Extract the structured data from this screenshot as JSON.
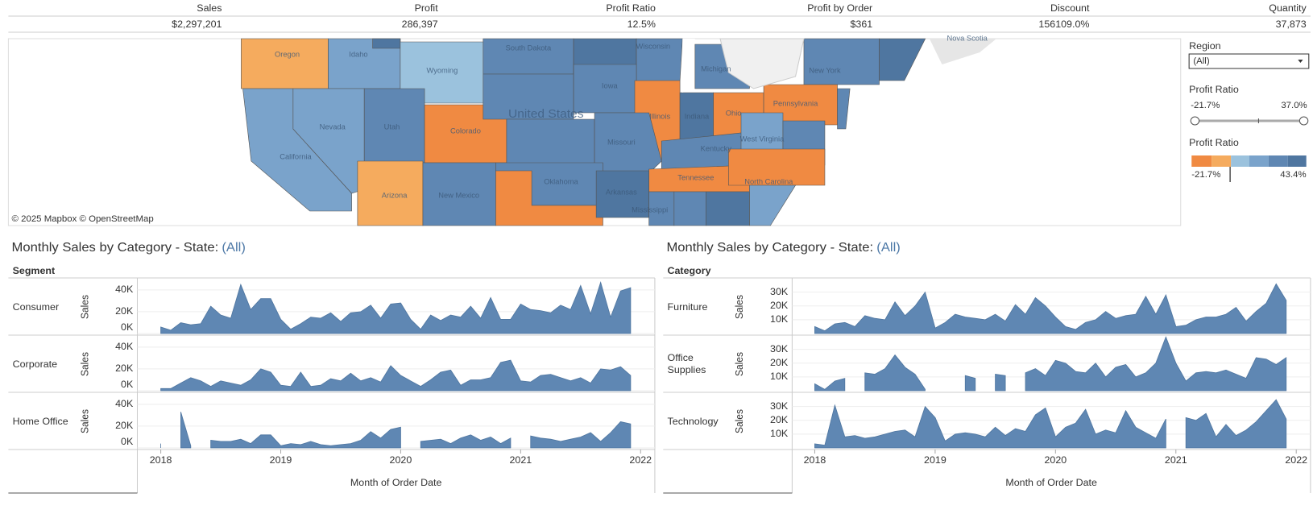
{
  "kpis": [
    {
      "label": "Sales",
      "value": "$2,297,201"
    },
    {
      "label": "Profit",
      "value": "286,397"
    },
    {
      "label": "Profit Ratio",
      "value": "12.5%"
    },
    {
      "label": "Profit by Order",
      "value": "$361"
    },
    {
      "label": "Discount",
      "value": "156109.0%"
    },
    {
      "label": "Quantity",
      "value": "37,873"
    }
  ],
  "map": {
    "attribution": "© 2025 Mapbox © OpenStreetMap",
    "labels": [
      "Oregon",
      "Idaho",
      "Wyoming",
      "South Dakota",
      "Wisconsin",
      "Michigan",
      "New York",
      "Nova Scotia",
      "Iowa",
      "United States",
      "Nevada",
      "Utah",
      "Colorado",
      "Illinois",
      "Indiana",
      "Ohio",
      "Pennsylvania",
      "California",
      "Missouri",
      "Kentucky",
      "West Virginia",
      "Oklahoma",
      "Arkansas",
      "Tennessee",
      "North Carolina",
      "Arizona",
      "New Mexico",
      "Mississippi"
    ]
  },
  "filters": {
    "region_label": "Region",
    "region_value": "(All)",
    "slider_label": "Profit Ratio",
    "slider_min": "-21.7%",
    "slider_max": "37.0%",
    "legend_label": "Profit Ratio",
    "legend_min": "-21.7%",
    "legend_max": "43.4%"
  },
  "chart_data": [
    {
      "type": "area",
      "title": "Monthly Sales by Category - State:",
      "filter": "(All)",
      "row_header": "Segment",
      "y_label": "Sales",
      "x_label": "Month of Order Date",
      "color": "#5f87b3",
      "x": [
        "2018-01",
        "2018-02",
        "2018-03",
        "2018-04",
        "2018-05",
        "2018-06",
        "2018-07",
        "2018-08",
        "2018-09",
        "2018-10",
        "2018-11",
        "2018-12",
        "2019-01",
        "2019-02",
        "2019-03",
        "2019-04",
        "2019-05",
        "2019-06",
        "2019-07",
        "2019-08",
        "2019-09",
        "2019-10",
        "2019-11",
        "2019-12",
        "2020-01",
        "2020-02",
        "2020-03",
        "2020-04",
        "2020-05",
        "2020-06",
        "2020-07",
        "2020-08",
        "2020-09",
        "2020-10",
        "2020-11",
        "2020-12",
        "2021-01",
        "2021-02",
        "2021-03",
        "2021-04",
        "2021-05",
        "2021-06",
        "2021-07",
        "2021-08",
        "2021-09",
        "2021-10",
        "2021-11",
        "2021-12"
      ],
      "xlim": [
        2018,
        2022
      ],
      "xticks": [
        2018,
        2019,
        2020,
        2021,
        2022
      ],
      "ylim": [
        0,
        48000
      ],
      "yticks": [
        {
          "value": 0,
          "label": "0K"
        },
        {
          "value": 20000,
          "label": "20K"
        },
        {
          "value": 40000,
          "label": "40K"
        }
      ],
      "panels": [
        {
          "name": "Consumer",
          "values": [
            6000,
            3000,
            10000,
            8000,
            9000,
            25000,
            17000,
            14000,
            45000,
            22000,
            32000,
            32000,
            13000,
            4000,
            9000,
            15000,
            14000,
            19000,
            11000,
            19000,
            20000,
            26000,
            14000,
            27000,
            28000,
            13000,
            4000,
            17000,
            12000,
            17000,
            15000,
            25000,
            14000,
            33000,
            13000,
            13000,
            27000,
            22000,
            21000,
            19000,
            26000,
            22000,
            44000,
            18000,
            47000,
            15000,
            39000,
            42000
          ]
        },
        {
          "name": "Corporate",
          "values": [
            2000,
            2000,
            7000,
            12000,
            9000,
            4000,
            9000,
            7000,
            5000,
            10000,
            20000,
            17000,
            5000,
            4000,
            17000,
            4000,
            5000,
            11000,
            9000,
            16000,
            9000,
            12000,
            8000,
            23000,
            14000,
            9000,
            4000,
            10000,
            17000,
            19000,
            5000,
            10000,
            10000,
            12000,
            26000,
            28000,
            9000,
            8000,
            14000,
            15000,
            12000,
            9000,
            12000,
            7000,
            20000,
            19000,
            22000,
            14000
          ]
        },
        {
          "name": "Home Office",
          "values": [
            4000,
            null,
            33000,
            2000,
            null,
            7000,
            6000,
            6000,
            8000,
            4000,
            12000,
            12000,
            2000,
            4000,
            3000,
            6000,
            3000,
            2000,
            3000,
            4000,
            7000,
            15000,
            9000,
            17000,
            19000,
            null,
            6000,
            7000,
            8000,
            4000,
            9000,
            12000,
            7000,
            10000,
            4000,
            9000,
            null,
            11000,
            9000,
            8000,
            6000,
            8000,
            10000,
            14000,
            6000,
            14000,
            24000,
            22000
          ]
        }
      ]
    },
    {
      "type": "area",
      "title": "Monthly Sales by Category - State:",
      "filter": "(All)",
      "row_header": "Category",
      "y_label": "Sales",
      "x_label": "Month of Order Date",
      "color": "#5f87b3",
      "x": [
        "2018-01",
        "2018-02",
        "2018-03",
        "2018-04",
        "2018-05",
        "2018-06",
        "2018-07",
        "2018-08",
        "2018-09",
        "2018-10",
        "2018-11",
        "2018-12",
        "2019-01",
        "2019-02",
        "2019-03",
        "2019-04",
        "2019-05",
        "2019-06",
        "2019-07",
        "2019-08",
        "2019-09",
        "2019-10",
        "2019-11",
        "2019-12",
        "2020-01",
        "2020-02",
        "2020-03",
        "2020-04",
        "2020-05",
        "2020-06",
        "2020-07",
        "2020-08",
        "2020-09",
        "2020-10",
        "2020-11",
        "2020-12",
        "2021-01",
        "2021-02",
        "2021-03",
        "2021-04",
        "2021-05",
        "2021-06",
        "2021-07",
        "2021-08",
        "2021-09",
        "2021-10",
        "2021-11",
        "2021-12"
      ],
      "xlim": [
        2018,
        2022
      ],
      "xticks": [
        2018,
        2019,
        2020,
        2021,
        2022
      ],
      "ylim": [
        0,
        38000
      ],
      "yticks": [
        {
          "value": 10000,
          "label": "10K"
        },
        {
          "value": 20000,
          "label": "20K"
        },
        {
          "value": 30000,
          "label": "30K"
        }
      ],
      "panels": [
        {
          "name": "Furniture",
          "values": [
            5000,
            2000,
            7000,
            8000,
            5000,
            13000,
            11000,
            10000,
            23000,
            13000,
            20000,
            30000,
            4000,
            8000,
            14000,
            12000,
            11000,
            10000,
            14000,
            9000,
            21000,
            14000,
            26000,
            20000,
            12000,
            5000,
            3000,
            8000,
            10000,
            16000,
            11000,
            13000,
            14000,
            27000,
            14000,
            28000,
            5000,
            6000,
            10000,
            12000,
            12000,
            14000,
            19000,
            9000,
            16000,
            22000,
            36000,
            24000
          ]
        },
        {
          "name": "Office Supplies",
          "values": [
            5000,
            1000,
            7000,
            9000,
            null,
            13000,
            12000,
            16000,
            26000,
            17000,
            12000,
            1000,
            null,
            null,
            null,
            11000,
            9000,
            null,
            12000,
            11000,
            null,
            13000,
            16000,
            11000,
            22000,
            20000,
            14000,
            13000,
            20000,
            10000,
            17000,
            19000,
            10000,
            13000,
            20000,
            39000,
            20000,
            7000,
            13000,
            14000,
            13000,
            15000,
            12000,
            9000,
            24000,
            23000,
            19000,
            24000
          ]
        },
        {
          "name": "Technology",
          "values": [
            3000,
            2000,
            31000,
            8000,
            9000,
            7000,
            8000,
            10000,
            12000,
            13000,
            8000,
            30000,
            22000,
            5000,
            10000,
            11000,
            10000,
            8000,
            15000,
            9000,
            14000,
            12000,
            24000,
            29000,
            8000,
            15000,
            18000,
            28000,
            10000,
            13000,
            11000,
            27000,
            15000,
            11000,
            7000,
            21000,
            null,
            22000,
            20000,
            25000,
            8000,
            17000,
            9000,
            13000,
            19000,
            27000,
            35000,
            21000
          ]
        }
      ]
    }
  ]
}
